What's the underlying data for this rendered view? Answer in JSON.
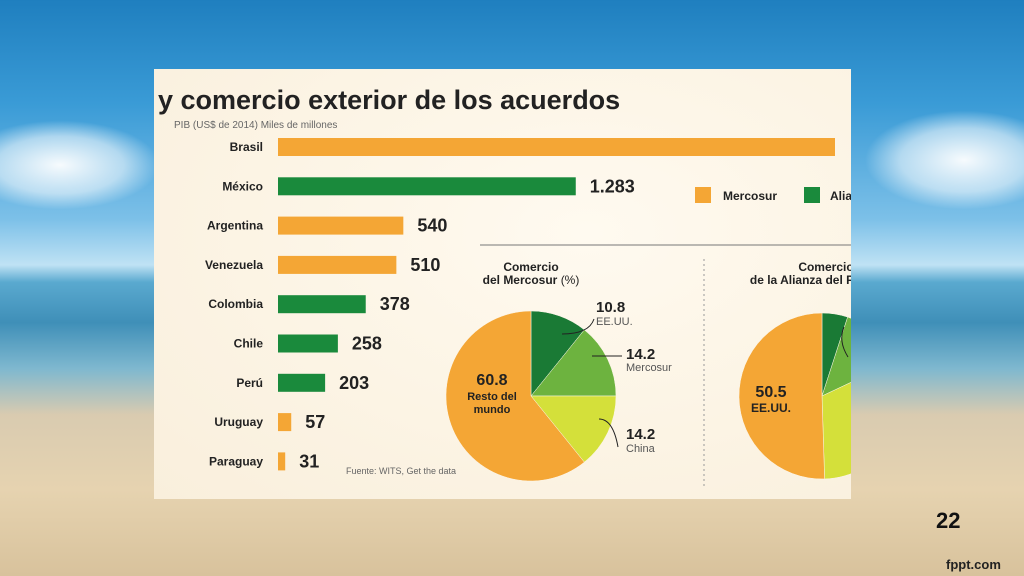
{
  "slide": {
    "number": "22",
    "brand": "fppt.com"
  },
  "header": {
    "title": "y comercio exterior de los acuerdos",
    "subtitle": "PIB (US$ de 2014) Miles de millones"
  },
  "legend": [
    {
      "label": "Mercosur",
      "color": "#f4a635"
    },
    {
      "label": "Alia",
      "color": "#1a8a3c"
    }
  ],
  "source": "Fuente: WITS, Get the data",
  "colors": {
    "mercosur": "#f4a635",
    "alianza": "#1a8a3c"
  },
  "chart_data": [
    {
      "type": "bar",
      "orientation": "horizontal",
      "title": "",
      "categories": [
        "Brasil",
        "México",
        "Argentina",
        "Venezuela",
        "Colombia",
        "Chile",
        "Perú",
        "Uruguay",
        "Paraguay"
      ],
      "values": [
        2400,
        1283,
        540,
        510,
        378,
        258,
        203,
        57,
        31
      ],
      "value_labels": [
        "",
        "1.283",
        "540",
        "510",
        "378",
        "258",
        "203",
        "57",
        "31"
      ],
      "groups": [
        "Mercosur",
        "Alianza",
        "Mercosur",
        "Mercosur",
        "Alianza",
        "Alianza",
        "Alianza",
        "Mercosur",
        "Mercosur"
      ],
      "xlim": [
        0,
        2400
      ]
    },
    {
      "type": "pie",
      "title_lines": [
        "Comercio",
        "del Mercosur"
      ],
      "title_unit": "(%)",
      "slices": [
        {
          "value": 10.8,
          "label": "10.8",
          "name": "EE.UU.",
          "color": "#1a7a35"
        },
        {
          "value": 14.2,
          "label": "14.2",
          "name": "Mercosur",
          "color": "#6db33f"
        },
        {
          "value": 14.2,
          "label": "14.2",
          "name": "China",
          "color": "#d4e03a"
        },
        {
          "value": 60.8,
          "label": "60.8",
          "name": "Resto del mundo",
          "color": "#f4a635"
        }
      ]
    },
    {
      "type": "pie",
      "title_lines": [
        "Comercio",
        "de la Alianza del P"
      ],
      "slices": [
        {
          "value": 5.0,
          "color": "#1a7a35"
        },
        {
          "value": 13.0,
          "color": "#6db33f"
        },
        {
          "value": 31.5,
          "color": "#d4e03a"
        },
        {
          "value": 50.5,
          "label": "50.5",
          "name": "EE.UU.",
          "color": "#f4a635"
        }
      ]
    }
  ]
}
